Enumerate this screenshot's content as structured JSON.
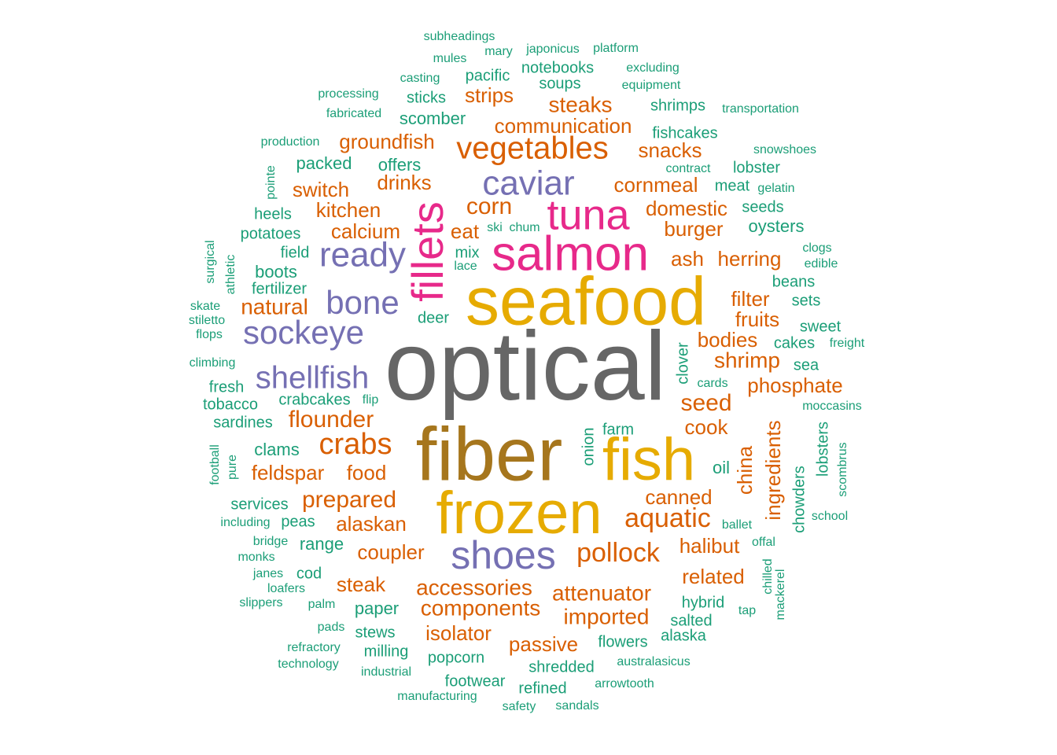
{
  "chart_data": {
    "type": "wordcloud",
    "title": "",
    "palette": {
      "green": "#1B9E77",
      "orange": "#D95F02",
      "purple": "#7570B3",
      "pink": "#E7298A",
      "olive": "#A6761D",
      "gold": "#E6AB02",
      "gray": "#666666"
    },
    "words": [
      {
        "text": "optical",
        "color": "gray"
      },
      {
        "text": "seafood",
        "color": "gold"
      },
      {
        "text": "fiber",
        "color": "olive"
      },
      {
        "text": "frozen",
        "color": "gold"
      },
      {
        "text": "fish",
        "color": "gold"
      },
      {
        "text": "salmon",
        "color": "pink"
      },
      {
        "text": "fillets",
        "color": "pink"
      },
      {
        "text": "tuna",
        "color": "pink"
      },
      {
        "text": "shoes",
        "color": "purple"
      },
      {
        "text": "caviar",
        "color": "purple"
      },
      {
        "text": "ready",
        "color": "purple"
      },
      {
        "text": "bone",
        "color": "purple"
      },
      {
        "text": "sockeye",
        "color": "purple"
      },
      {
        "text": "shellfish",
        "color": "purple"
      },
      {
        "text": "vegetables",
        "color": "orange"
      },
      {
        "text": "crabs",
        "color": "orange"
      },
      {
        "text": "aquatic",
        "color": "orange"
      },
      {
        "text": "pollock",
        "color": "orange"
      },
      {
        "text": "flounder",
        "color": "orange"
      },
      {
        "text": "prepared",
        "color": "orange"
      },
      {
        "text": "accessories",
        "color": "orange"
      },
      {
        "text": "components",
        "color": "orange"
      },
      {
        "text": "attenuator",
        "color": "orange"
      },
      {
        "text": "imported",
        "color": "orange"
      },
      {
        "text": "communication",
        "color": "orange"
      },
      {
        "text": "groundfish",
        "color": "orange"
      },
      {
        "text": "cornmeal",
        "color": "orange"
      },
      {
        "text": "domestic",
        "color": "orange"
      },
      {
        "text": "burger",
        "color": "orange"
      },
      {
        "text": "herring",
        "color": "orange"
      },
      {
        "text": "shrimp",
        "color": "orange"
      },
      {
        "text": "phosphate",
        "color": "orange"
      },
      {
        "text": "seed",
        "color": "orange"
      },
      {
        "text": "ingredients",
        "color": "orange"
      },
      {
        "text": "china",
        "color": "orange"
      },
      {
        "text": "corn",
        "color": "orange"
      },
      {
        "text": "calcium",
        "color": "orange"
      },
      {
        "text": "natural",
        "color": "orange"
      },
      {
        "text": "kitchen",
        "color": "orange"
      },
      {
        "text": "switch",
        "color": "orange"
      },
      {
        "text": "drinks",
        "color": "orange"
      },
      {
        "text": "steaks",
        "color": "orange"
      },
      {
        "text": "strips",
        "color": "orange"
      },
      {
        "text": "snacks",
        "color": "orange"
      },
      {
        "text": "filter",
        "color": "orange"
      },
      {
        "text": "fruits",
        "color": "orange"
      },
      {
        "text": "bodies",
        "color": "orange"
      },
      {
        "text": "ash",
        "color": "orange"
      },
      {
        "text": "eat",
        "color": "orange"
      },
      {
        "text": "cook",
        "color": "orange"
      },
      {
        "text": "canned",
        "color": "orange"
      },
      {
        "text": "halibut",
        "color": "orange"
      },
      {
        "text": "related",
        "color": "orange"
      },
      {
        "text": "feldspar",
        "color": "orange"
      },
      {
        "text": "food",
        "color": "orange"
      },
      {
        "text": "alaskan",
        "color": "orange"
      },
      {
        "text": "coupler",
        "color": "orange"
      },
      {
        "text": "steak",
        "color": "orange"
      },
      {
        "text": "isolator",
        "color": "orange"
      },
      {
        "text": "passive",
        "color": "orange"
      },
      {
        "text": "scomber",
        "color": "green"
      },
      {
        "text": "sticks",
        "color": "green"
      },
      {
        "text": "pacific",
        "color": "green"
      },
      {
        "text": "soups",
        "color": "green"
      },
      {
        "text": "notebooks",
        "color": "green"
      },
      {
        "text": "shrimps",
        "color": "green"
      },
      {
        "text": "fishcakes",
        "color": "green"
      },
      {
        "text": "offers",
        "color": "green"
      },
      {
        "text": "packed",
        "color": "green"
      },
      {
        "text": "lobster",
        "color": "green"
      },
      {
        "text": "meat",
        "color": "green"
      },
      {
        "text": "seeds",
        "color": "green"
      },
      {
        "text": "oysters",
        "color": "green"
      },
      {
        "text": "heels",
        "color": "green"
      },
      {
        "text": "potatoes",
        "color": "green"
      },
      {
        "text": "field",
        "color": "green"
      },
      {
        "text": "boots",
        "color": "green"
      },
      {
        "text": "fertilizer",
        "color": "green"
      },
      {
        "text": "mix",
        "color": "green"
      },
      {
        "text": "lace",
        "color": "green"
      },
      {
        "text": "beans",
        "color": "green"
      },
      {
        "text": "sets",
        "color": "green"
      },
      {
        "text": "sweet",
        "color": "green"
      },
      {
        "text": "cakes",
        "color": "green"
      },
      {
        "text": "sea",
        "color": "green"
      },
      {
        "text": "deer",
        "color": "green"
      },
      {
        "text": "fresh",
        "color": "green"
      },
      {
        "text": "tobacco",
        "color": "green"
      },
      {
        "text": "crabcakes",
        "color": "green"
      },
      {
        "text": "sardines",
        "color": "green"
      },
      {
        "text": "clams",
        "color": "green"
      },
      {
        "text": "farm",
        "color": "green"
      },
      {
        "text": "onion",
        "color": "green"
      },
      {
        "text": "oil",
        "color": "green"
      },
      {
        "text": "services",
        "color": "green"
      },
      {
        "text": "peas",
        "color": "green"
      },
      {
        "text": "range",
        "color": "green"
      },
      {
        "text": "cod",
        "color": "green"
      },
      {
        "text": "paper",
        "color": "green"
      },
      {
        "text": "stews",
        "color": "green"
      },
      {
        "text": "milling",
        "color": "green"
      },
      {
        "text": "popcorn",
        "color": "green"
      },
      {
        "text": "footwear",
        "color": "green"
      },
      {
        "text": "refined",
        "color": "green"
      },
      {
        "text": "shredded",
        "color": "green"
      },
      {
        "text": "flowers",
        "color": "green"
      },
      {
        "text": "alaska",
        "color": "green"
      },
      {
        "text": "salted",
        "color": "green"
      },
      {
        "text": "hybrid",
        "color": "green"
      },
      {
        "text": "clover",
        "color": "green"
      },
      {
        "text": "chowders",
        "color": "green"
      },
      {
        "text": "lobsters",
        "color": "green"
      },
      {
        "text": "subheadings",
        "color": "green"
      },
      {
        "text": "mules",
        "color": "green"
      },
      {
        "text": "mary",
        "color": "green"
      },
      {
        "text": "japonicus",
        "color": "green"
      },
      {
        "text": "platform",
        "color": "green"
      },
      {
        "text": "excluding",
        "color": "green"
      },
      {
        "text": "casting",
        "color": "green"
      },
      {
        "text": "equipment",
        "color": "green"
      },
      {
        "text": "processing",
        "color": "green"
      },
      {
        "text": "transportation",
        "color": "green"
      },
      {
        "text": "fabricated",
        "color": "green"
      },
      {
        "text": "production",
        "color": "green"
      },
      {
        "text": "snowshoes",
        "color": "green"
      },
      {
        "text": "contract",
        "color": "green"
      },
      {
        "text": "pointe",
        "color": "green"
      },
      {
        "text": "gelatin",
        "color": "green"
      },
      {
        "text": "ski",
        "color": "green"
      },
      {
        "text": "chum",
        "color": "green"
      },
      {
        "text": "surgical",
        "color": "green"
      },
      {
        "text": "athletic",
        "color": "green"
      },
      {
        "text": "clogs",
        "color": "green"
      },
      {
        "text": "edible",
        "color": "green"
      },
      {
        "text": "skate",
        "color": "green"
      },
      {
        "text": "stiletto",
        "color": "green"
      },
      {
        "text": "flops",
        "color": "green"
      },
      {
        "text": "freight",
        "color": "green"
      },
      {
        "text": "climbing",
        "color": "green"
      },
      {
        "text": "cards",
        "color": "green"
      },
      {
        "text": "flip",
        "color": "green"
      },
      {
        "text": "moccasins",
        "color": "green"
      },
      {
        "text": "football",
        "color": "green"
      },
      {
        "text": "pure",
        "color": "green"
      },
      {
        "text": "scombrus",
        "color": "green"
      },
      {
        "text": "school",
        "color": "green"
      },
      {
        "text": "including",
        "color": "green"
      },
      {
        "text": "ballet",
        "color": "green"
      },
      {
        "text": "bridge",
        "color": "green"
      },
      {
        "text": "offal",
        "color": "green"
      },
      {
        "text": "monks",
        "color": "green"
      },
      {
        "text": "janes",
        "color": "green"
      },
      {
        "text": "chilled",
        "color": "green"
      },
      {
        "text": "mackerel",
        "color": "green"
      },
      {
        "text": "loafers",
        "color": "green"
      },
      {
        "text": "slippers",
        "color": "green"
      },
      {
        "text": "palm",
        "color": "green"
      },
      {
        "text": "tap",
        "color": "green"
      },
      {
        "text": "pads",
        "color": "green"
      },
      {
        "text": "refractory",
        "color": "green"
      },
      {
        "text": "technology",
        "color": "green"
      },
      {
        "text": "industrial",
        "color": "green"
      },
      {
        "text": "australasicus",
        "color": "green"
      },
      {
        "text": "arrowtooth",
        "color": "green"
      },
      {
        "text": "manufacturing",
        "color": "green"
      },
      {
        "text": "safety",
        "color": "green"
      },
      {
        "text": "sandals",
        "color": "green"
      }
    ]
  }
}
